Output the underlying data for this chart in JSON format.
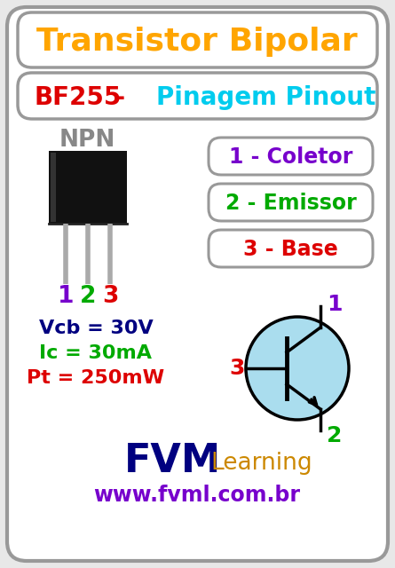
{
  "bg_color": "#e8e8e8",
  "outer_border_color": "#999999",
  "title1": "Transistor Bipolar",
  "title1_color": "#FFA500",
  "title2_bf": "BF255",
  "title2_bf_color": "#dd0000",
  "title2_dash": " - ",
  "title2_dash_color": "#dd0000",
  "title2_pinagem": "Pinagem Pinout",
  "title2_pinagem_color": "#00ccee",
  "npn_label": "NPN",
  "npn_color": "#888888",
  "pin_labels": [
    "1",
    "2",
    "3"
  ],
  "pin_colors": [
    "#7700cc",
    "#00aa00",
    "#dd0000"
  ],
  "box1_text": "1 - Coletor",
  "box1_text_color": "#7700cc",
  "box2_text": "2 - Emissor",
  "box2_text_color": "#00aa00",
  "box3_text": "3 - Base",
  "box3_text_color": "#dd0000",
  "spec1": "Vcb = 30V",
  "spec1_color": "#000080",
  "spec2": "Ic = 30mA",
  "spec2_color": "#00aa00",
  "spec3": "Pt = 250mW",
  "spec3_color": "#dd0000",
  "fvm_color": "#000080",
  "learning_color": "#cc8800",
  "website": "www.fvml.com.br",
  "website_color": "#7700cc",
  "transistor_circle_color": "#aaddee",
  "transistor_circle_edge": "#000000",
  "schematic_pin1_color": "#7700cc",
  "schematic_pin2_color": "#00aa00",
  "schematic_pin3_color": "#dd0000"
}
